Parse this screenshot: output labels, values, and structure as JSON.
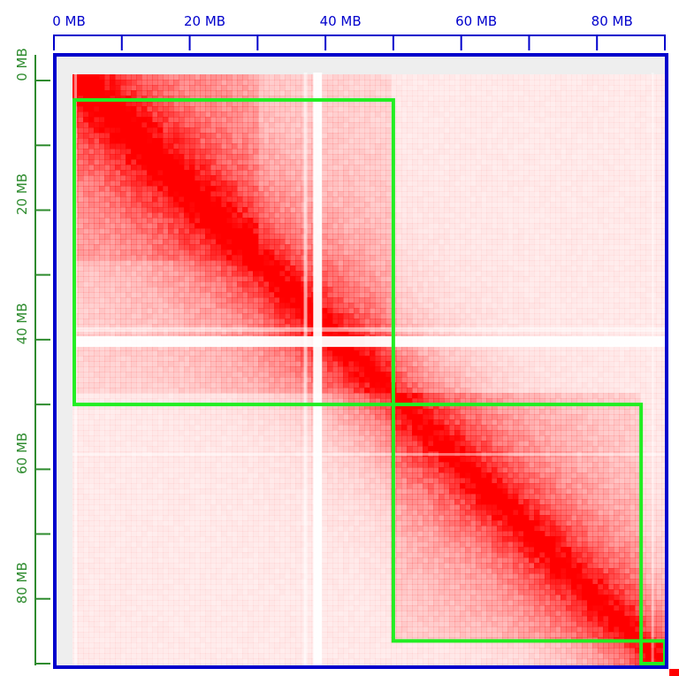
{
  "x_axis": {
    "unit": "MB",
    "range": [
      0,
      90
    ],
    "ticks": [
      0,
      10,
      20,
      30,
      40,
      50,
      60,
      70,
      80,
      90
    ],
    "labels": [
      {
        "value": 0,
        "text": "0 MB"
      },
      {
        "value": 20,
        "text": "20 MB"
      },
      {
        "value": 40,
        "text": "40 MB"
      },
      {
        "value": 60,
        "text": "60 MB"
      },
      {
        "value": 80,
        "text": "80 MB"
      }
    ]
  },
  "y_axis": {
    "unit": "MB",
    "range": [
      0,
      90
    ],
    "ticks": [
      0,
      10,
      20,
      30,
      40,
      50,
      60,
      70,
      80,
      90
    ],
    "labels": [
      {
        "value": 0,
        "text": "0 MB"
      },
      {
        "value": 20,
        "text": "20 MB"
      },
      {
        "value": 40,
        "text": "40 MB"
      },
      {
        "value": 60,
        "text": "60 MB"
      },
      {
        "value": 80,
        "text": "80 MB"
      }
    ]
  },
  "domains": [
    {
      "start_mb": 3,
      "end_mb": 50
    },
    {
      "start_mb": 50,
      "end_mb": 86.5
    },
    {
      "start_mb": 86.5,
      "end_mb": 90
    }
  ],
  "colors": {
    "contact": "#ff0000",
    "background": "#ffffff",
    "frame": "#0000cc",
    "domain_outline": "#22ee22",
    "x_axis": "#0000cc",
    "y_axis": "#2e8b2e",
    "gutter": "#eeeeee"
  }
}
